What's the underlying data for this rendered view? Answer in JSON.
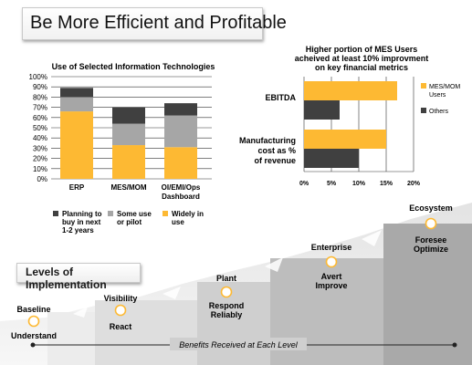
{
  "page": {
    "title": "Be More Efficient and Profitable"
  },
  "chart_data": [
    {
      "type": "bar",
      "stacked": true,
      "title": "Use of Selected Information Technologies",
      "categories": [
        "ERP",
        "MES/MOM",
        "OI/EMI/Ops Dashboard"
      ],
      "ylim": [
        0,
        100
      ],
      "yticks": [
        "0%",
        "10%",
        "20%",
        "30%",
        "40%",
        "50%",
        "60%",
        "70%",
        "80%",
        "90%",
        "100%"
      ],
      "grid": true,
      "legend_position": "bottom",
      "series": [
        {
          "name": "Widely in use",
          "color": "#FDB933",
          "values": [
            66,
            33,
            31
          ]
        },
        {
          "name": "Some use or pilot",
          "color": "#A6A6A6",
          "values": [
            14,
            21,
            31
          ]
        },
        {
          "name": "Planning to buy in next 1-2 years",
          "color": "#404040",
          "values": [
            9,
            16,
            12
          ]
        }
      ]
    },
    {
      "type": "bar",
      "orientation": "horizontal",
      "title": "Higher portion of MES Users acheived at least 10% improvment on key financial metrics",
      "categories": [
        "EBITDA",
        "Manufacturing cost as % of revenue"
      ],
      "xlim": [
        0,
        20
      ],
      "xticks": [
        "0%",
        "5%",
        "10%",
        "15%",
        "20%"
      ],
      "grid": true,
      "legend_position": "right",
      "series": [
        {
          "name": "MES/MOM Users",
          "color": "#FDB933",
          "values": [
            17,
            15
          ]
        },
        {
          "name": "Others",
          "color": "#404040",
          "values": [
            6.5,
            10
          ]
        }
      ]
    }
  ],
  "implementation": {
    "header": "Levels of Implementation",
    "footer": "Benefits Received at Each Level",
    "levels": [
      {
        "name": "Baseline",
        "benefit": "Understand"
      },
      {
        "name": "Visibility",
        "benefit": "React"
      },
      {
        "name": "Plant",
        "benefit": "Respond Reliably"
      },
      {
        "name": "Enterprise",
        "benefit": "Avert Improve"
      },
      {
        "name": "Ecosystem",
        "benefit": "Foresee Optimize"
      }
    ]
  }
}
